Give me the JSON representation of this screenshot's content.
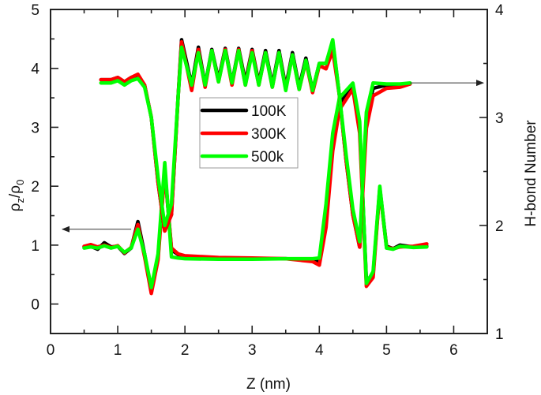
{
  "chart_data": {
    "type": "line",
    "title": "",
    "xlabel": "Z (nm)",
    "ylabel_left": "ρz/ρ0",
    "ylabel_right": "H-bond Number",
    "xlim": [
      0,
      6.5
    ],
    "ylim_left": [
      -0.5,
      5
    ],
    "ylim_right": [
      1,
      4
    ],
    "x_ticks": [
      "0",
      "1",
      "2",
      "3",
      "4",
      "5",
      "6"
    ],
    "y_left_ticks": [
      "0",
      "1",
      "2",
      "3",
      "4",
      "5"
    ],
    "y_right_ticks": [
      "1",
      "2",
      "3",
      "4"
    ],
    "grid": false,
    "legend": {
      "position": "center-upper",
      "entries": [
        {
          "name": "100K",
          "color": "#000000"
        },
        {
          "name": "300K",
          "color": "#ff0000"
        },
        {
          "name": "500k",
          "color": "#00ff00"
        }
      ]
    },
    "annotations": [
      {
        "type": "arrow",
        "text": "",
        "points_to": "left axis (density curves)",
        "at_y_left": 1.27
      },
      {
        "type": "arrow",
        "text": "",
        "points_to": "right axis (H-bond curves)",
        "at_y_right": 3.32
      }
    ],
    "density_series": [
      {
        "name": "100K",
        "axis": "left",
        "color": "#000000",
        "x": [
          0.5,
          0.6,
          0.7,
          0.8,
          0.9,
          1.0,
          1.1,
          1.2,
          1.3,
          1.4,
          1.5,
          1.6,
          1.7,
          1.8,
          1.9,
          2.0,
          2.5,
          3.0,
          3.5,
          3.9,
          4.0,
          4.1,
          4.2,
          4.3,
          4.5,
          4.6,
          4.7,
          4.8,
          4.9,
          5.0,
          5.1,
          5.2,
          5.4,
          5.6
        ],
        "y": [
          0.97,
          0.98,
          0.93,
          1.04,
          0.97,
          0.98,
          0.86,
          0.95,
          1.4,
          0.85,
          0.2,
          0.8,
          2.3,
          0.92,
          0.84,
          0.8,
          0.78,
          0.77,
          0.77,
          0.75,
          0.72,
          1.5,
          2.8,
          3.4,
          3.7,
          3.0,
          0.4,
          0.5,
          1.97,
          0.98,
          0.94,
          1.0,
          0.97,
          0.98
        ]
      },
      {
        "name": "300K",
        "axis": "left",
        "color": "#ff0000",
        "x": [
          0.5,
          0.6,
          0.7,
          0.8,
          0.9,
          1.0,
          1.1,
          1.2,
          1.3,
          1.4,
          1.5,
          1.6,
          1.7,
          1.8,
          1.9,
          2.0,
          2.5,
          3.0,
          3.5,
          3.9,
          4.0,
          4.1,
          4.2,
          4.3,
          4.5,
          4.6,
          4.7,
          4.8,
          4.9,
          5.0,
          5.1,
          5.2,
          5.4,
          5.6
        ],
        "y": [
          0.98,
          1.01,
          0.97,
          1.0,
          0.96,
          0.99,
          0.87,
          0.96,
          1.35,
          0.8,
          0.18,
          0.75,
          2.25,
          0.95,
          0.85,
          0.82,
          0.79,
          0.78,
          0.77,
          0.72,
          0.66,
          1.3,
          2.6,
          3.3,
          3.65,
          2.9,
          0.3,
          0.45,
          1.95,
          0.96,
          0.94,
          0.97,
          0.98,
          1.02
        ]
      },
      {
        "name": "500k",
        "axis": "left",
        "color": "#00ff00",
        "x": [
          0.5,
          0.6,
          0.7,
          0.8,
          0.9,
          1.0,
          1.1,
          1.2,
          1.3,
          1.4,
          1.5,
          1.6,
          1.7,
          1.8,
          1.9,
          2.0,
          2.5,
          3.0,
          3.5,
          3.9,
          4.0,
          4.1,
          4.2,
          4.3,
          4.5,
          4.6,
          4.7,
          4.8,
          4.9,
          5.0,
          5.1,
          5.2,
          5.4,
          5.6
        ],
        "y": [
          0.95,
          0.97,
          0.95,
          0.99,
          0.95,
          0.98,
          0.88,
          0.95,
          1.27,
          0.85,
          0.28,
          0.85,
          2.4,
          0.8,
          0.78,
          0.77,
          0.76,
          0.76,
          0.77,
          0.77,
          0.78,
          1.7,
          2.9,
          3.5,
          3.75,
          3.1,
          0.35,
          0.55,
          2.0,
          0.95,
          0.93,
          0.98,
          0.96,
          0.97
        ]
      }
    ],
    "hbond_series": [
      {
        "name": "100K",
        "axis": "right",
        "color": "#000000",
        "x": [
          0.75,
          0.9,
          1.0,
          1.1,
          1.2,
          1.3,
          1.4,
          1.5,
          1.6,
          1.7,
          1.8,
          1.9,
          1.95,
          2.1,
          2.2,
          2.3,
          2.4,
          2.5,
          2.6,
          2.7,
          2.8,
          2.9,
          3.0,
          3.1,
          3.2,
          3.3,
          3.4,
          3.5,
          3.6,
          3.7,
          3.8,
          3.9,
          4.0,
          4.1,
          4.2,
          4.3,
          4.4,
          4.5,
          4.6,
          4.7,
          4.8,
          5.0,
          5.2,
          5.35
        ],
        "y": [
          3.35,
          3.35,
          3.37,
          3.33,
          3.37,
          3.39,
          3.3,
          3.0,
          2.4,
          1.95,
          2.1,
          3.2,
          3.72,
          3.3,
          3.65,
          3.3,
          3.63,
          3.35,
          3.64,
          3.32,
          3.64,
          3.33,
          3.63,
          3.32,
          3.62,
          3.3,
          3.62,
          3.28,
          3.6,
          3.28,
          3.55,
          3.25,
          3.5,
          3.5,
          3.7,
          3.2,
          2.6,
          2.1,
          1.8,
          3.0,
          3.27,
          3.3,
          3.3,
          3.31
        ]
      },
      {
        "name": "300K",
        "axis": "right",
        "color": "#ff0000",
        "x": [
          0.75,
          0.9,
          1.0,
          1.1,
          1.2,
          1.3,
          1.4,
          1.5,
          1.6,
          1.7,
          1.8,
          1.9,
          1.95,
          2.1,
          2.2,
          2.3,
          2.4,
          2.5,
          2.6,
          2.7,
          2.8,
          2.9,
          3.0,
          3.1,
          3.2,
          3.3,
          3.4,
          3.5,
          3.6,
          3.7,
          3.8,
          3.9,
          4.0,
          4.1,
          4.2,
          4.3,
          4.4,
          4.5,
          4.6,
          4.7,
          4.8,
          5.0,
          5.2,
          5.35
        ],
        "y": [
          3.35,
          3.35,
          3.37,
          3.33,
          3.37,
          3.4,
          3.3,
          3.0,
          2.4,
          1.95,
          2.1,
          3.2,
          3.7,
          3.25,
          3.63,
          3.28,
          3.62,
          3.33,
          3.63,
          3.3,
          3.63,
          3.3,
          3.62,
          3.3,
          3.6,
          3.28,
          3.6,
          3.26,
          3.58,
          3.26,
          3.52,
          3.23,
          3.48,
          3.45,
          3.62,
          3.2,
          2.6,
          2.1,
          1.8,
          2.9,
          3.2,
          3.27,
          3.28,
          3.31
        ]
      },
      {
        "name": "500k",
        "axis": "right",
        "color": "#00ff00",
        "x": [
          0.75,
          0.9,
          1.0,
          1.1,
          1.2,
          1.3,
          1.4,
          1.5,
          1.6,
          1.7,
          1.8,
          1.9,
          1.95,
          2.1,
          2.2,
          2.3,
          2.4,
          2.5,
          2.6,
          2.7,
          2.8,
          2.9,
          3.0,
          3.1,
          3.2,
          3.3,
          3.4,
          3.5,
          3.6,
          3.7,
          3.8,
          3.9,
          4.0,
          4.1,
          4.2,
          4.3,
          4.4,
          4.5,
          4.6,
          4.7,
          4.8,
          5.0,
          5.2,
          5.35
        ],
        "y": [
          3.32,
          3.32,
          3.34,
          3.3,
          3.34,
          3.36,
          3.28,
          3.0,
          2.45,
          2.0,
          2.2,
          3.2,
          3.65,
          3.3,
          3.6,
          3.3,
          3.62,
          3.33,
          3.62,
          3.32,
          3.62,
          3.3,
          3.6,
          3.3,
          3.6,
          3.28,
          3.6,
          3.25,
          3.58,
          3.26,
          3.53,
          3.25,
          3.5,
          3.5,
          3.72,
          3.2,
          2.65,
          2.15,
          1.85,
          3.05,
          3.32,
          3.31,
          3.31,
          3.32
        ]
      }
    ]
  },
  "labels": {
    "xlabel": "Z (nm)",
    "ylabel_left_main": "ρ",
    "ylabel_left_sub1": "z",
    "ylabel_left_slash": "/ρ",
    "ylabel_left_sub2": "0",
    "ylabel_right": "H-bond Number"
  }
}
